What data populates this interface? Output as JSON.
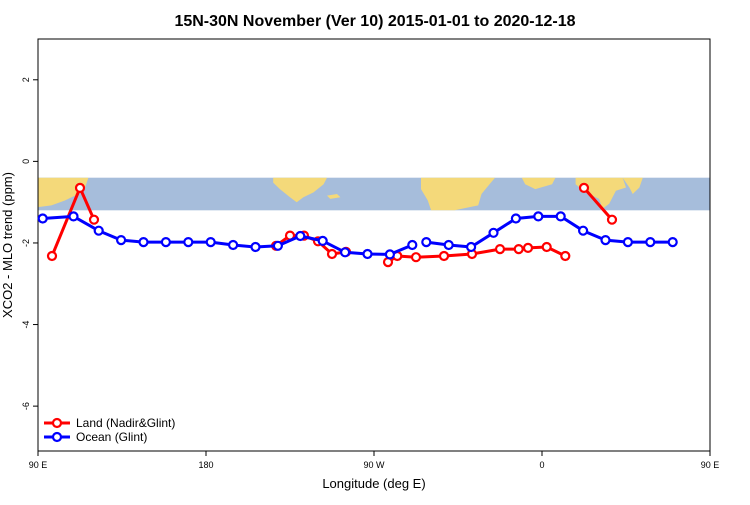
{
  "chart_data": {
    "type": "line",
    "title": "15N-30N November (Ver 10)   2015-01-01 to 2020-12-18",
    "xlabel": "Longitude (deg E)",
    "ylabel": "XCO2 - MLO trend (ppm)",
    "xlim": [
      90,
      450
    ],
    "ylim": [
      -7.1,
      3.0
    ],
    "x_ticks": [
      90,
      180,
      270,
      360,
      450,
      540
    ],
    "x_tick_labels": [
      "90 E",
      "180",
      "90 W",
      "0",
      "90 E",
      "180"
    ],
    "y_ticks": [
      -6,
      -4,
      -2,
      0,
      2
    ],
    "y_tick_labels": [
      "-6",
      "-4",
      "-2",
      "0",
      "2"
    ],
    "map_band": {
      "y_top": -0.4,
      "y_bottom": -1.2,
      "ocean_color": "#a6bddb",
      "land_color": "#f4d97a"
    },
    "legend_position": "bottom-left",
    "series": [
      {
        "name": "Land (Nadir&Glint)",
        "color": "#ff0000",
        "segments": [
          {
            "x": [
              97.5,
              112.5,
              120
            ],
            "y": [
              -2.32,
              -0.65,
              -1.43
            ]
          },
          {
            "x": [
              217.5,
              225,
              232.5,
              240,
              247.5,
              255
            ],
            "y": [
              -2.07,
              -1.82,
              -1.82,
              -1.96,
              -2.27,
              -2.22
            ]
          },
          {
            "x": [
              277.5,
              282.5,
              292.5,
              307.5,
              322.5,
              337.5,
              347.5,
              352.5,
              362.5,
              372.5
            ],
            "y": [
              -2.47,
              -2.32,
              -2.35,
              -2.32,
              -2.27,
              -2.15,
              -2.15,
              -2.12,
              -2.1,
              -2.32
            ]
          },
          {
            "x": [
              382.5,
              397.5
            ],
            "y": [
              -0.65,
              -1.43
            ]
          }
        ]
      },
      {
        "name": "Ocean (Glint)",
        "color": "#0000ff",
        "segments": [
          {
            "x": [
              92.5,
              109,
              122.5,
              134.5,
              146.5,
              158.5,
              170.5,
              182.5,
              194.5,
              206.5,
              218.5,
              230.5,
              242.5,
              254.5,
              266.5,
              278.5,
              290.5
            ],
            "y": [
              -1.4,
              -1.35,
              -1.7,
              -1.93,
              -1.98,
              -1.98,
              -1.98,
              -1.98,
              -2.05,
              -2.1,
              -2.07,
              -1.83,
              -1.95,
              -2.23,
              -2.27,
              -2.28,
              -2.05
            ]
          },
          {
            "x": [
              298,
              310,
              322,
              334,
              346,
              358,
              370,
              382,
              394,
              406,
              418,
              430
            ],
            "y": [
              -1.98,
              -2.05,
              -2.1,
              -1.75,
              -1.4,
              -1.35,
              -1.35,
              -1.7,
              -1.93,
              -1.98,
              -1.98,
              -1.98
            ]
          }
        ]
      }
    ]
  }
}
